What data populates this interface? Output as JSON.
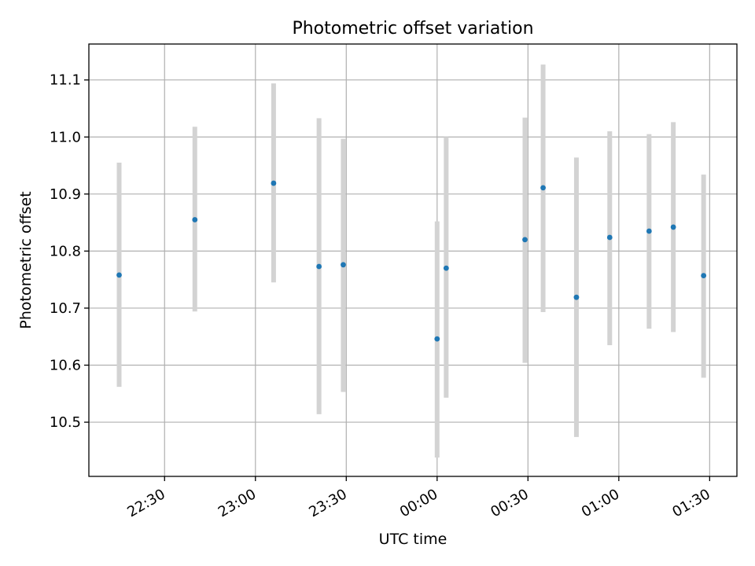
{
  "chart_data": {
    "type": "scatter",
    "title": "Photometric offset variation",
    "xlabel": "UTC time",
    "ylabel": "Photometric offset",
    "xlim": [
      "22:05",
      "01:39"
    ],
    "ylim": [
      10.405,
      11.163
    ],
    "x_ticks": [
      "22:30",
      "23:00",
      "23:30",
      "00:00",
      "00:30",
      "01:00",
      "01:30"
    ],
    "y_ticks": [
      "10.5",
      "10.6",
      "10.7",
      "10.8",
      "10.9",
      "11.0",
      "11.1"
    ],
    "grid": true,
    "series": [
      {
        "points": [
          {
            "x": "22:15",
            "y": 10.758,
            "err_low": 10.562,
            "err_high": 10.955
          },
          {
            "x": "22:40",
            "y": 10.855,
            "err_low": 10.694,
            "err_high": 11.018
          },
          {
            "x": "23:06",
            "y": 10.919,
            "err_low": 10.745,
            "err_high": 11.094
          },
          {
            "x": "23:21",
            "y": 10.773,
            "err_low": 10.514,
            "err_high": 11.033
          },
          {
            "x": "23:29",
            "y": 10.776,
            "err_low": 10.553,
            "err_high": 10.997
          },
          {
            "x": "00:00",
            "y": 10.646,
            "err_low": 10.438,
            "err_high": 10.852
          },
          {
            "x": "00:03",
            "y": 10.77,
            "err_low": 10.543,
            "err_high": 11.0
          },
          {
            "x": "00:29",
            "y": 10.82,
            "err_low": 10.604,
            "err_high": 11.034
          },
          {
            "x": "00:35",
            "y": 10.911,
            "err_low": 10.693,
            "err_high": 11.127
          },
          {
            "x": "00:46",
            "y": 10.719,
            "err_low": 10.474,
            "err_high": 10.964
          },
          {
            "x": "00:57",
            "y": 10.824,
            "err_low": 10.635,
            "err_high": 11.01
          },
          {
            "x": "01:10",
            "y": 10.835,
            "err_low": 10.664,
            "err_high": 11.005
          },
          {
            "x": "01:18",
            "y": 10.842,
            "err_low": 10.658,
            "err_high": 11.026
          },
          {
            "x": "01:28",
            "y": 10.757,
            "err_low": 10.578,
            "err_high": 10.934
          }
        ]
      }
    ]
  }
}
